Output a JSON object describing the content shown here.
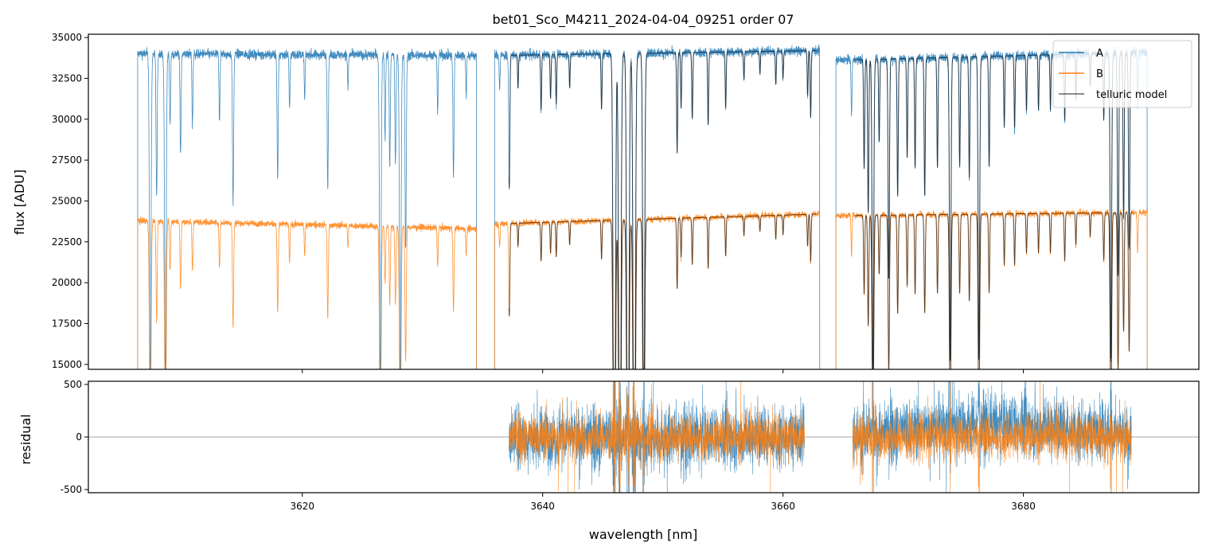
{
  "chart_data": {
    "type": "line",
    "title": "bet01_Sco_M4211_2024-04-04_09251  order 07",
    "xlabel": "wavelength [nm]",
    "xlim": [
      3602.2,
      3694.6
    ],
    "x_ticks": [
      3620,
      3640,
      3660,
      3680
    ],
    "legend": {
      "placement": "top-right",
      "entries": [
        "A",
        "B",
        "telluric model"
      ]
    },
    "colors": {
      "A": "#1f77b4",
      "B": "#ff7f0e",
      "model": "#000000",
      "zero_line": "#888888"
    },
    "top_panel": {
      "ylabel": "flux [ADU]",
      "ylim": [
        14700,
        35200
      ],
      "y_ticks": [
        15000,
        17500,
        20000,
        22500,
        25000,
        27500,
        30000,
        32500,
        35000
      ],
      "series": [
        {
          "name": "A",
          "continuum": [
            [
              3606.3,
              34000
            ],
            [
              3634.5,
              33900
            ],
            [
              3636.0,
              33900
            ],
            [
              3663.0,
              34200
            ],
            [
              3664.4,
              33600
            ],
            [
              3690.3,
              34100
            ]
          ],
          "segments": [
            [
              3606.3,
              3634.5
            ],
            [
              3636.0,
              3663.05
            ],
            [
              3664.4,
              3690.3
            ]
          ],
          "noise": 180
        },
        {
          "name": "B",
          "continuum": [
            [
              3606.3,
              23800
            ],
            [
              3634.5,
              23300
            ],
            [
              3636.0,
              23600
            ],
            [
              3663.0,
              24200
            ],
            [
              3664.4,
              24100
            ],
            [
              3690.3,
              24300
            ]
          ],
          "segments": [
            [
              3606.3,
              3634.5
            ],
            [
              3636.0,
              3663.05
            ],
            [
              3664.4,
              3690.3
            ]
          ],
          "noise": 120
        },
        {
          "name": "telluric model",
          "segments": [
            [
              3637.2,
              3662.8
            ],
            [
              3666.0,
              3689.1
            ]
          ]
        }
      ],
      "absorption_lines": [
        [
          3607.35,
          0.6
        ],
        [
          3607.88,
          0.26
        ],
        [
          3608.61,
          0.6
        ],
        [
          3609.0,
          0.13
        ],
        [
          3609.87,
          0.18
        ],
        [
          3610.86,
          0.13
        ],
        [
          3613.11,
          0.12
        ],
        [
          3614.24,
          0.27
        ],
        [
          3617.95,
          0.23
        ],
        [
          3618.94,
          0.1
        ],
        [
          3620.2,
          0.08
        ],
        [
          3622.12,
          0.24
        ],
        [
          3623.8,
          0.06
        ],
        [
          3626.49,
          0.6
        ],
        [
          3626.89,
          0.15
        ],
        [
          3627.28,
          0.2
        ],
        [
          3627.75,
          0.2
        ],
        [
          3628.15,
          0.6
        ],
        [
          3628.6,
          0.35
        ],
        [
          3631.26,
          0.1
        ],
        [
          3632.58,
          0.22
        ],
        [
          3633.64,
          0.07
        ],
        [
          3636.42,
          0.06
        ],
        [
          3637.22,
          0.24
        ],
        [
          3637.95,
          0.06
        ],
        [
          3639.87,
          0.1
        ],
        [
          3640.66,
          0.08
        ],
        [
          3641.13,
          0.09
        ],
        [
          3642.25,
          0.06
        ],
        [
          3644.9,
          0.1
        ],
        [
          3645.96,
          1.0
        ],
        [
          3646.42,
          1.0
        ],
        [
          3647.09,
          1.0
        ],
        [
          3647.62,
          1.0
        ],
        [
          3648.41,
          0.75
        ],
        [
          3651.19,
          0.18
        ],
        [
          3651.52,
          0.1
        ],
        [
          3652.45,
          0.12
        ],
        [
          3653.77,
          0.13
        ],
        [
          3655.23,
          0.1
        ],
        [
          3656.75,
          0.05
        ],
        [
          3658.08,
          0.04
        ],
        [
          3659.4,
          0.06
        ],
        [
          3660.0,
          0.05
        ],
        [
          3662.05,
          0.08
        ],
        [
          3662.3,
          0.12
        ],
        [
          3665.7,
          0.1
        ],
        [
          3666.75,
          0.2
        ],
        [
          3667.09,
          0.28
        ],
        [
          3667.48,
          0.6
        ],
        [
          3668.0,
          0.15
        ],
        [
          3668.8,
          0.4
        ],
        [
          3669.54,
          0.25
        ],
        [
          3670.33,
          0.18
        ],
        [
          3670.99,
          0.2
        ],
        [
          3671.79,
          0.25
        ],
        [
          3672.85,
          0.2
        ],
        [
          3673.91,
          0.55
        ],
        [
          3674.7,
          0.2
        ],
        [
          3675.5,
          0.22
        ],
        [
          3676.3,
          0.55
        ],
        [
          3677.15,
          0.2
        ],
        [
          3678.41,
          0.13
        ],
        [
          3679.27,
          0.13
        ],
        [
          3680.26,
          0.1
        ],
        [
          3681.26,
          0.1
        ],
        [
          3682.25,
          0.1
        ],
        [
          3683.44,
          0.12
        ],
        [
          3684.37,
          0.08
        ],
        [
          3685.56,
          0.06
        ],
        [
          3686.69,
          0.12
        ],
        [
          3687.28,
          0.55
        ],
        [
          3687.88,
          0.4
        ],
        [
          3688.34,
          0.3
        ],
        [
          3688.8,
          0.35
        ],
        [
          3689.5,
          0.1
        ]
      ]
    },
    "bottom_panel": {
      "ylabel": "residual",
      "ylim": [
        -530,
        530
      ],
      "y_ticks": [
        -500,
        0,
        500
      ],
      "segments": [
        [
          3637.2,
          3661.8
        ],
        [
          3665.8,
          3689.0
        ]
      ],
      "series": [
        {
          "name": "A",
          "noise_std": 150,
          "offset_second_segment": 120
        },
        {
          "name": "B",
          "noise_std": 110,
          "offset_second_segment": 0
        }
      ]
    }
  }
}
